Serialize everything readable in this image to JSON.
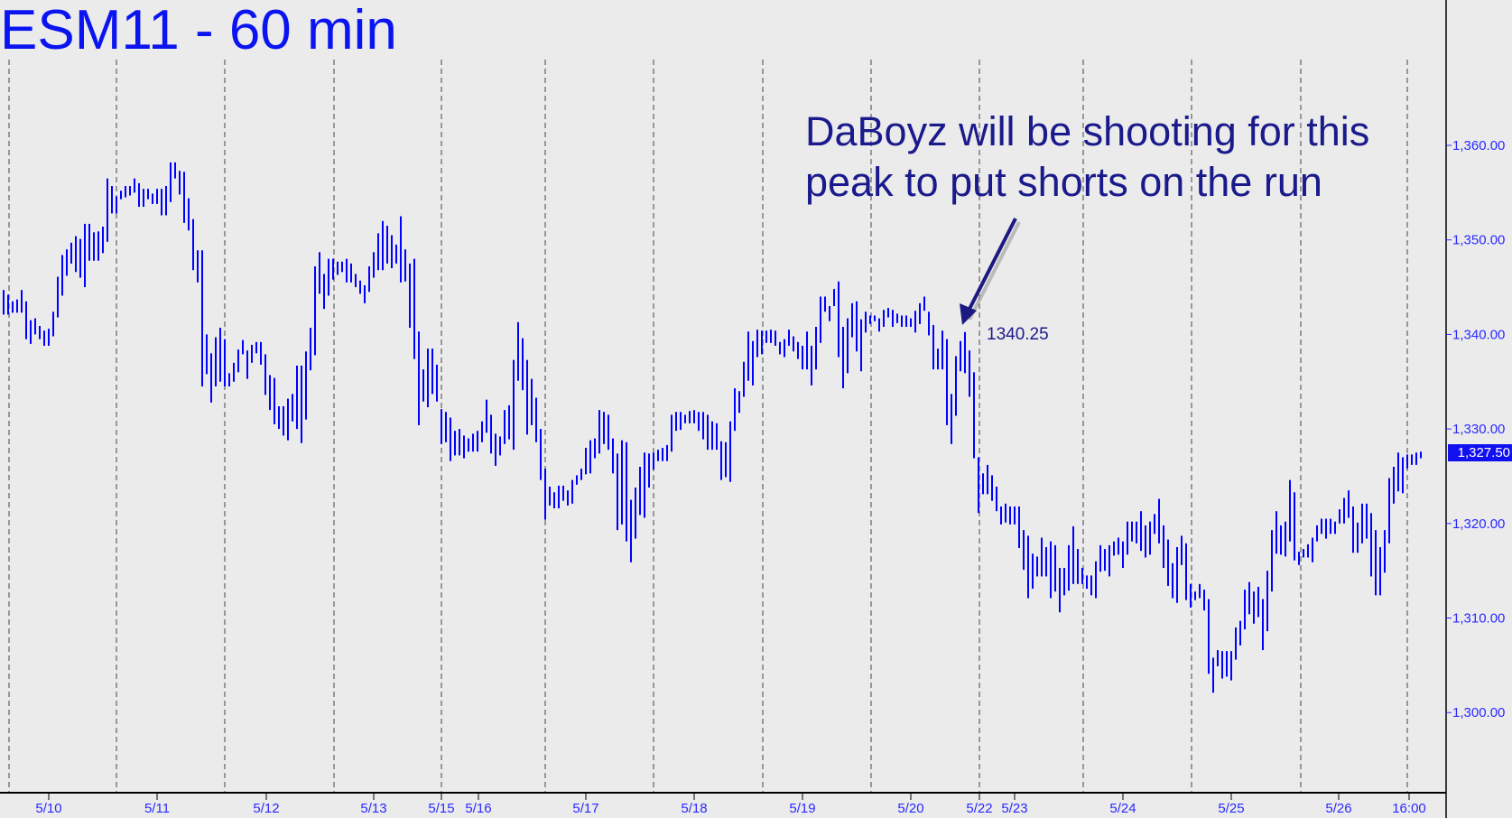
{
  "chart_data": {
    "type": "ohlc-bar",
    "title": "ESM11 - 60 min",
    "annotation": [
      "DaBoyz will be shooting for this",
      "peak to put shorts on the run"
    ],
    "peak_label": "1340.25",
    "last_price_label": "1,327.50",
    "last_price": 1327.5,
    "ylim": [
      1290,
      1375
    ],
    "y_ticks": [
      1300,
      1310,
      1320,
      1330,
      1340,
      1350,
      1360
    ],
    "y_tick_labels": [
      "1,300.00",
      "1,310.00",
      "1,320.00",
      "1,330.00",
      "1,340.00",
      "1,350.00",
      "1,360.00"
    ],
    "x_tick_labels": [
      "5/10",
      "5/11",
      "5/12",
      "5/13",
      "5/15",
      "5/16",
      "5/17",
      "5/18",
      "5/19",
      "5/20",
      "5/22",
      "5/23",
      "5/24",
      "5/25",
      "5/26",
      "16:00"
    ],
    "grid": "vertical dashed session separators",
    "colors": {
      "bars": "#0000ff",
      "title": "#0a14f0",
      "annotation": "#1a1a8c",
      "background": "#ebebeb"
    },
    "bars_high_low": [
      [
        1344.7,
        1342.1
      ],
      [
        1344.2,
        1342.1
      ],
      [
        1343.5,
        1342.3
      ],
      [
        1343.7,
        1342.3
      ],
      [
        1344.7,
        1342.3
      ],
      [
        1343.5,
        1339.5
      ],
      [
        1341.5,
        1339
      ],
      [
        1341.7,
        1340
      ],
      [
        1340.9,
        1339.5
      ],
      [
        1340.4,
        1338.8
      ],
      [
        1340.6,
        1338.8
      ],
      [
        1342.4,
        1339.8
      ],
      [
        1346.1,
        1341.8
      ],
      [
        1348.4,
        1344.1
      ],
      [
        1349,
        1346.2
      ],
      [
        1349.7,
        1347.5
      ],
      [
        1350.4,
        1346.6
      ],
      [
        1350.1,
        1346
      ],
      [
        1351.7,
        1345
      ],
      [
        1351.7,
        1347.8
      ],
      [
        1350.8,
        1347.8
      ],
      [
        1350.9,
        1347.8
      ],
      [
        1351.4,
        1348.6
      ],
      [
        1356.5,
        1349.8
      ],
      [
        1355.7,
        1352.8
      ],
      [
        1354.6,
        1352.8
      ],
      [
        1355.2,
        1354.3
      ],
      [
        1355.7,
        1354.5
      ],
      [
        1355.7,
        1354.7
      ],
      [
        1356.5,
        1355
      ],
      [
        1356,
        1353.5
      ],
      [
        1355.4,
        1353.5
      ],
      [
        1355.4,
        1354.3
      ],
      [
        1354.9,
        1353.8
      ],
      [
        1355.4,
        1353.8
      ],
      [
        1355.4,
        1352.6
      ],
      [
        1355.7,
        1352.6
      ],
      [
        1358.2,
        1354
      ],
      [
        1358.2,
        1356.5
      ],
      [
        1357.3,
        1354.8
      ],
      [
        1357.2,
        1351.8
      ],
      [
        1354.4,
        1351
      ],
      [
        1352.2,
        1346.8
      ],
      [
        1348.9,
        1345.5
      ],
      [
        1348.9,
        1334.5
      ],
      [
        1340,
        1335.8
      ],
      [
        1338,
        1332.8
      ],
      [
        1339.7,
        1334.5
      ],
      [
        1340.7,
        1335
      ],
      [
        1339.5,
        1334.5
      ],
      [
        1335.9,
        1334.5
      ],
      [
        1337,
        1335
      ],
      [
        1338.4,
        1336
      ],
      [
        1339.4,
        1337.9
      ],
      [
        1338.3,
        1335.3
      ],
      [
        1338.9,
        1337
      ],
      [
        1339.2,
        1338
      ],
      [
        1339.2,
        1336.8
      ],
      [
        1337.9,
        1333.6
      ],
      [
        1335.7,
        1332
      ],
      [
        1335.4,
        1330.5
      ],
      [
        1332.4,
        1330
      ],
      [
        1332.4,
        1329.3
      ],
      [
        1333.2,
        1328.8
      ],
      [
        1333.7,
        1330.8
      ],
      [
        1336.7,
        1330
      ],
      [
        1336.7,
        1328.5
      ],
      [
        1338.2,
        1331
      ],
      [
        1340.7,
        1336.2
      ],
      [
        1347.2,
        1337.8
      ],
      [
        1348.7,
        1344.3
      ],
      [
        1346.4,
        1342.7
      ],
      [
        1348,
        1344.1
      ],
      [
        1348,
        1345.8
      ],
      [
        1347.7,
        1346.3
      ],
      [
        1347.7,
        1346.6
      ],
      [
        1348,
        1345.5
      ],
      [
        1347.5,
        1345.5
      ],
      [
        1346.4,
        1345
      ],
      [
        1345.7,
        1344.3
      ],
      [
        1345.2,
        1343.3
      ],
      [
        1347.2,
        1344.5
      ],
      [
        1348.7,
        1346
      ],
      [
        1350.7,
        1346.8
      ],
      [
        1352,
        1346.8
      ],
      [
        1351.5,
        1347.5
      ],
      [
        1350.5,
        1347
      ],
      [
        1349.5,
        1347.5
      ],
      [
        1352.5,
        1345.5
      ],
      [
        1349,
        1345.6
      ],
      [
        1347.5,
        1340.7
      ],
      [
        1348,
        1337.4
      ],
      [
        1340.3,
        1330.4
      ],
      [
        1336.3,
        1332.9
      ],
      [
        1338.5,
        1332.3
      ],
      [
        1338.5,
        1333.7
      ],
      [
        1336.8,
        1332.9
      ],
      [
        1332.1,
        1328.4
      ],
      [
        1331.8,
        1328.6
      ],
      [
        1331.2,
        1326.6
      ],
      [
        1329.8,
        1327.2
      ],
      [
        1330,
        1327.2
      ],
      [
        1329.3,
        1326.9
      ],
      [
        1329,
        1327.6
      ],
      [
        1329.5,
        1327.6
      ],
      [
        1329.8,
        1327.6
      ],
      [
        1330.8,
        1328.6
      ],
      [
        1333.1,
        1329.6
      ],
      [
        1331.5,
        1327.4
      ],
      [
        1329.5,
        1326.1
      ],
      [
        1329.2,
        1327.2
      ],
      [
        1332,
        1328.4
      ],
      [
        1332.5,
        1328.9
      ],
      [
        1337.3,
        1327.8
      ],
      [
        1341.3,
        1335.1
      ],
      [
        1339.6,
        1334.1
      ],
      [
        1337.3,
        1329.4
      ],
      [
        1335.3,
        1330.4
      ],
      [
        1333.3,
        1328.6
      ],
      [
        1330,
        1324.6
      ],
      [
        1325.8,
        1320.4
      ],
      [
        1323.9,
        1321.9
      ],
      [
        1323.3,
        1321.6
      ],
      [
        1324,
        1321.6
      ],
      [
        1324,
        1322.4
      ],
      [
        1323.5,
        1321.9
      ],
      [
        1324.6,
        1322.1
      ],
      [
        1325.1,
        1324.1
      ],
      [
        1325.8,
        1324.6
      ],
      [
        1328,
        1325.2
      ],
      [
        1328.8,
        1325.3
      ],
      [
        1329,
        1326.9
      ],
      [
        1332,
        1327.4
      ],
      [
        1331.8,
        1328.4
      ],
      [
        1331.5,
        1327.8
      ],
      [
        1329,
        1325.3
      ],
      [
        1327.4,
        1319.3
      ],
      [
        1328.8,
        1319.9
      ],
      [
        1328.6,
        1318.1
      ],
      [
        1322.5,
        1315.9
      ],
      [
        1323.8,
        1318.4
      ],
      [
        1326,
        1320.9
      ],
      [
        1327.5,
        1320.6
      ],
      [
        1327.4,
        1323.8
      ],
      [
        1327.5,
        1325.7
      ],
      [
        1327.8,
        1326.6
      ],
      [
        1328,
        1326.6
      ],
      [
        1328.3,
        1326.6
      ],
      [
        1331.5,
        1327.6
      ],
      [
        1331.8,
        1329.8
      ],
      [
        1331.8,
        1329.9
      ],
      [
        1331.5,
        1330.6
      ],
      [
        1331.9,
        1330.6
      ],
      [
        1332,
        1330.6
      ],
      [
        1331.8,
        1329.8
      ],
      [
        1331.8,
        1328.9
      ],
      [
        1331.5,
        1327.8
      ],
      [
        1330.8,
        1327.8
      ],
      [
        1330.6,
        1327.8
      ],
      [
        1328.7,
        1324.6
      ],
      [
        1328.6,
        1324.9
      ],
      [
        1330.8,
        1324.4
      ],
      [
        1334.3,
        1329.8
      ],
      [
        1334,
        1331.7
      ],
      [
        1337.1,
        1333.4
      ],
      [
        1340.3,
        1335.1
      ],
      [
        1339.3,
        1334.6
      ],
      [
        1340.5,
        1337.6
      ],
      [
        1340.4,
        1337.9
      ],
      [
        1340.4,
        1339.1
      ],
      [
        1340.5,
        1339.1
      ],
      [
        1340.4,
        1338.8
      ],
      [
        1339.2,
        1337.9
      ],
      [
        1339.5,
        1337.6
      ],
      [
        1340.5,
        1338.8
      ],
      [
        1339.8,
        1338.2
      ],
      [
        1339.2,
        1337.4
      ],
      [
        1338.8,
        1336.3
      ],
      [
        1340.3,
        1336.3
      ],
      [
        1338.8,
        1334.6
      ],
      [
        1340.8,
        1336.3
      ],
      [
        1344,
        1339.1
      ],
      [
        1344,
        1342.4
      ],
      [
        1343,
        1341.4
      ],
      [
        1344.8,
        1343
      ],
      [
        1345.6,
        1337.6
      ],
      [
        1340.8,
        1334.3
      ],
      [
        1341.7,
        1335.9
      ],
      [
        1343.3,
        1339.7
      ],
      [
        1343.5,
        1338.2
      ],
      [
        1341.6,
        1336.1
      ],
      [
        1342.4,
        1340.2
      ],
      [
        1342,
        1341.1
      ],
      [
        1342,
        1341.4
      ],
      [
        1341.7,
        1340.3
      ],
      [
        1342.6,
        1340.8
      ],
      [
        1342.8,
        1341.8
      ],
      [
        1342.6,
        1340.8
      ],
      [
        1342.2,
        1341.2
      ],
      [
        1342,
        1340.8
      ],
      [
        1342,
        1340.8
      ],
      [
        1341.7,
        1340.8
      ],
      [
        1342.5,
        1340.2
      ],
      [
        1343.3,
        1341.1
      ],
      [
        1344,
        1342.5
      ],
      [
        1342.4,
        1339.9
      ],
      [
        1341,
        1336.3
      ],
      [
        1338.5,
        1336.3
      ],
      [
        1340.4,
        1336.3
      ],
      [
        1339.5,
        1330.4
      ],
      [
        1333.7,
        1328.4
      ],
      [
        1337.7,
        1331.4
      ],
      [
        1339.3,
        1336.1
      ],
      [
        1340.25,
        1335.9
      ],
      [
        1338.3,
        1333.4
      ],
      [
        1336,
        1326.9
      ],
      [
        1327,
        1321.1
      ],
      [
        1325.3,
        1323.1
      ],
      [
        1326.2,
        1323.1
      ],
      [
        1325.1,
        1322.4
      ],
      [
        1323.9,
        1321.3
      ],
      [
        1321.8,
        1319.9
      ],
      [
        1322.1,
        1320.1
      ],
      [
        1321.8,
        1319.9
      ],
      [
        1321.8,
        1319.9
      ],
      [
        1321.8,
        1317.4
      ],
      [
        1319.3,
        1315.1
      ],
      [
        1318.7,
        1312.1
      ],
      [
        1316.8,
        1313.1
      ],
      [
        1316.5,
        1314.4
      ],
      [
        1318.5,
        1314.4
      ],
      [
        1317.5,
        1314.4
      ],
      [
        1318.1,
        1312.1
      ],
      [
        1317.7,
        1312.8
      ],
      [
        1315.3,
        1310.6
      ],
      [
        1315.3,
        1312.4
      ],
      [
        1317.7,
        1312.9
      ],
      [
        1319.7,
        1313.6
      ],
      [
        1317.3,
        1313.6
      ],
      [
        1315.3,
        1313.6
      ],
      [
        1314.5,
        1313.1
      ],
      [
        1314.5,
        1312.4
      ],
      [
        1316,
        1312.1
      ],
      [
        1317.7,
        1314.9
      ],
      [
        1317.3,
        1315
      ],
      [
        1317.7,
        1314.4
      ],
      [
        1318.1,
        1316.6
      ],
      [
        1318.5,
        1316.7
      ],
      [
        1318.1,
        1315.3
      ],
      [
        1320.2,
        1316.7
      ],
      [
        1320.2,
        1318.1
      ],
      [
        1320.2,
        1317.9
      ],
      [
        1321.3,
        1317.1
      ],
      [
        1319.8,
        1316.4
      ],
      [
        1320.2,
        1316.7
      ],
      [
        1321,
        1318.9
      ],
      [
        1322.6,
        1317.9
      ],
      [
        1319.8,
        1315.3
      ],
      [
        1318.3,
        1313.4
      ],
      [
        1315.8,
        1312.1
      ],
      [
        1317.5,
        1311.6
      ],
      [
        1318.7,
        1315.6
      ],
      [
        1317.9,
        1311.9
      ],
      [
        1313.6,
        1311.1
      ],
      [
        1312.8,
        1311.9
      ],
      [
        1313.6,
        1312.1
      ],
      [
        1313,
        1310.8
      ],
      [
        1312,
        1304.1
      ],
      [
        1305.8,
        1302.1
      ],
      [
        1306.6,
        1304.9
      ],
      [
        1306.5,
        1303.6
      ],
      [
        1306.5,
        1303.8
      ],
      [
        1306.5,
        1303.4
      ],
      [
        1309,
        1305.6
      ],
      [
        1309.7,
        1307.1
      ],
      [
        1313,
        1308.8
      ],
      [
        1313.8,
        1310.4
      ],
      [
        1312.8,
        1309.4
      ],
      [
        1313.3,
        1310.1
      ],
      [
        1312,
        1306.6
      ],
      [
        1315,
        1308.6
      ],
      [
        1319.3,
        1312.8
      ],
      [
        1321.3,
        1316.8
      ],
      [
        1319.8,
        1316.7
      ],
      [
        1320.2,
        1316.5
      ],
      [
        1324.6,
        1318.1
      ],
      [
        1323.3,
        1316.1
      ],
      [
        1317,
        1315.6
      ],
      [
        1317.3,
        1316.4
      ],
      [
        1317.8,
        1316.4
      ],
      [
        1318.5,
        1315.9
      ],
      [
        1319.8,
        1318.1
      ],
      [
        1320.5,
        1318.9
      ],
      [
        1320.5,
        1318.4
      ],
      [
        1320.5,
        1318.9
      ],
      [
        1320.2,
        1318.9
      ],
      [
        1321.5,
        1320
      ],
      [
        1322.7,
        1320
      ],
      [
        1323.5,
        1320.6
      ],
      [
        1321.8,
        1316.9
      ],
      [
        1320.1,
        1316.9
      ],
      [
        1322.1,
        1317.9
      ],
      [
        1322.1,
        1318.4
      ],
      [
        1321.1,
        1314.4
      ],
      [
        1319.3,
        1312.4
      ],
      [
        1317.5,
        1312.4
      ],
      [
        1319.3,
        1314.8
      ],
      [
        1324.8,
        1317.9
      ],
      [
        1326,
        1322.1
      ],
      [
        1327.5,
        1323.4
      ],
      [
        1327,
        1323.2
      ],
      [
        1327.3,
        1325.8
      ],
      [
        1327.3,
        1326.2
      ],
      [
        1327.5,
        1326.2
      ],
      [
        1327.6,
        1326.9
      ]
    ]
  }
}
